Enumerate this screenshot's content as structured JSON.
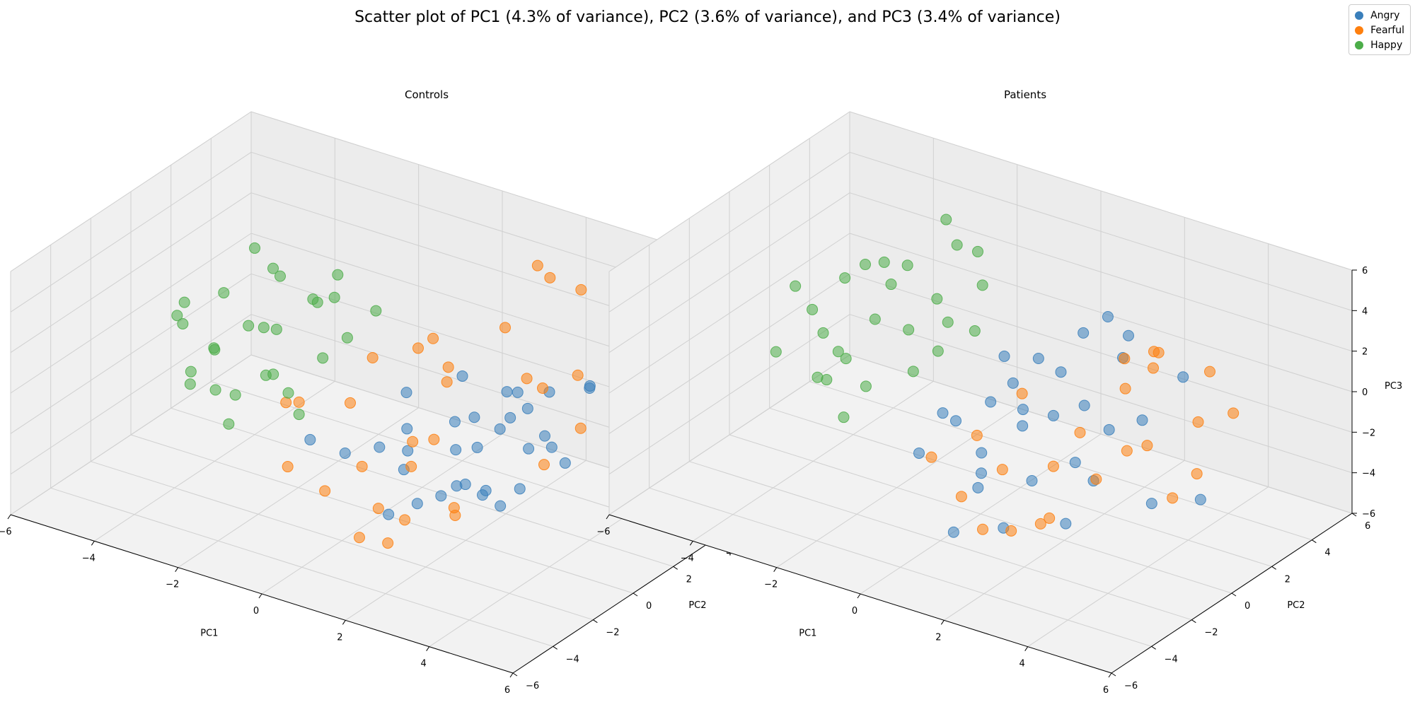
{
  "figure": {
    "title": "Scatter plot of PC1 (4.3% of variance), PC2 (3.6% of variance), and PC3 (3.4% of variance)"
  },
  "legend": {
    "placement": "top-right",
    "entries": [
      {
        "label": "Angry",
        "color": "#3a7fbb"
      },
      {
        "label": "Fearful",
        "color": "#fe7f0e"
      },
      {
        "label": "Happy",
        "color": "#4cad49"
      }
    ]
  },
  "chart_data": [
    {
      "type": "scatter",
      "title": "Controls",
      "xlabel": "PC1",
      "ylabel": "PC2",
      "zlabel": "PC3",
      "xlim": [
        -6,
        6
      ],
      "ylim": [
        -6,
        6
      ],
      "zlim": [
        -6,
        6
      ],
      "xticks": [
        "−6",
        "−4",
        "−2",
        "0",
        "2",
        "4",
        "6"
      ],
      "yticks": [
        "−6",
        "−4",
        "−2",
        "0",
        "2",
        "4",
        "6"
      ],
      "zticks": [
        "−6",
        "−4",
        "−2",
        "0",
        "2",
        "4",
        "6"
      ],
      "grid": true,
      "series": [
        {
          "name": "Angry",
          "color": "#3a7fbb",
          "points": [
            [
              2.0,
              -0.5,
              -1.2
            ],
            [
              3.0,
              1.0,
              0.5
            ],
            [
              1.5,
              0.5,
              -0.8
            ],
            [
              2.5,
              -1.5,
              -2.0
            ],
            [
              4.0,
              2.0,
              1.5
            ],
            [
              3.5,
              0.0,
              -0.5
            ],
            [
              1.0,
              -1.0,
              -2.5
            ],
            [
              2.2,
              1.8,
              -1.0
            ],
            [
              3.2,
              -0.8,
              0.8
            ],
            [
              0.5,
              0.2,
              -1.6
            ],
            [
              2.8,
              2.5,
              0.2
            ],
            [
              1.8,
              -2.0,
              -3.0
            ],
            [
              3.8,
              1.2,
              -1.8
            ],
            [
              2.4,
              0.0,
              -3.5
            ],
            [
              4.5,
              3.0,
              0.0
            ],
            [
              1.2,
              1.5,
              0.6
            ],
            [
              0.8,
              -1.8,
              -1.0
            ],
            [
              3.4,
              -1.2,
              -2.6
            ],
            [
              2.6,
              0.8,
              1.2
            ],
            [
              1.6,
              -0.4,
              -3.8
            ],
            [
              3.0,
              2.2,
              -2.2
            ],
            [
              -0.5,
              -0.8,
              -2.8
            ],
            [
              5.0,
              2.5,
              1.0
            ],
            [
              2.0,
              1.0,
              -4.2
            ],
            [
              1.4,
              -2.6,
              -3.4
            ],
            [
              3.6,
              0.6,
              -0.2
            ],
            [
              0.2,
              0.8,
              -0.4
            ],
            [
              2.9,
              -1.9,
              -1.4
            ],
            [
              4.2,
              1.6,
              2.0
            ],
            [
              -1.0,
              -1.5,
              -2.0
            ],
            [
              1.9,
              2.8,
              -0.6
            ],
            [
              2.3,
              -0.2,
              0.4
            ],
            [
              3.1,
              0.4,
              -3.0
            ],
            [
              0.9,
              -0.6,
              -1.9
            ],
            [
              1.7,
              1.2,
              -2.4
            ]
          ]
        },
        {
          "name": "Fearful",
          "color": "#fe7f0e",
          "points": [
            [
              1.0,
              0.5,
              -2.0
            ],
            [
              0.0,
              -1.0,
              -3.0
            ],
            [
              2.5,
              2.0,
              1.0
            ],
            [
              -1.0,
              0.5,
              -1.5
            ],
            [
              1.5,
              -2.0,
              -4.0
            ],
            [
              3.0,
              3.5,
              0.5
            ],
            [
              0.5,
              1.5,
              2.0
            ],
            [
              1.8,
              4.0,
              4.8
            ],
            [
              2.0,
              4.2,
              4.2
            ],
            [
              2.6,
              4.5,
              3.8
            ],
            [
              -0.6,
              -1.6,
              -4.2
            ],
            [
              0.8,
              -2.8,
              -4.8
            ],
            [
              2.2,
              -1.0,
              -3.6
            ],
            [
              3.5,
              2.6,
              -1.2
            ],
            [
              1.2,
              0.8,
              1.5
            ],
            [
              -1.6,
              -0.8,
              -1.0
            ],
            [
              0.4,
              2.4,
              -0.8
            ],
            [
              2.8,
              -2.2,
              -2.8
            ],
            [
              -0.8,
              1.2,
              0.4
            ],
            [
              1.6,
              2.8,
              2.4
            ],
            [
              0.2,
              -0.6,
              -5.2
            ],
            [
              3.2,
              1.4,
              -2.4
            ],
            [
              -2.2,
              -0.2,
              -1.8
            ],
            [
              1.4,
              -1.4,
              -0.6
            ],
            [
              2.4,
              3.0,
              -0.2
            ],
            [
              0.6,
              0.2,
              -3.4
            ],
            [
              -1.2,
              -2.2,
              -3.0
            ],
            [
              4.0,
              3.6,
              0.8
            ],
            [
              0.0,
              1.8,
              1.0
            ],
            [
              1.0,
              -1.8,
              -5.6
            ]
          ]
        },
        {
          "name": "Happy",
          "color": "#4cad49",
          "points": [
            [
              -3.0,
              1.0,
              0.5
            ],
            [
              -4.0,
              0.0,
              -0.5
            ],
            [
              -2.5,
              2.0,
              1.5
            ],
            [
              -3.5,
              -1.0,
              -1.5
            ],
            [
              -4.5,
              1.5,
              1.0
            ],
            [
              -2.0,
              -0.5,
              -1.0
            ],
            [
              -3.8,
              2.5,
              2.0
            ],
            [
              -5.0,
              0.5,
              -0.2
            ],
            [
              -2.8,
              -1.8,
              -2.2
            ],
            [
              -4.2,
              -0.8,
              -1.8
            ],
            [
              -3.2,
              1.6,
              2.6
            ],
            [
              -1.8,
              0.8,
              0.0
            ],
            [
              -2.4,
              2.8,
              2.4
            ],
            [
              -4.8,
              -0.2,
              0.8
            ],
            [
              -3.6,
              0.2,
              -2.6
            ],
            [
              -1.5,
              1.4,
              0.8
            ],
            [
              -2.2,
              -1.2,
              0.2
            ],
            [
              -4.0,
              2.0,
              3.2
            ],
            [
              -3.0,
              -0.4,
              1.6
            ],
            [
              -1.2,
              2.2,
              1.8
            ],
            [
              -4.4,
              0.8,
              -1.2
            ],
            [
              -2.6,
              0.0,
              -0.8
            ],
            [
              -3.4,
              1.2,
              0.2
            ],
            [
              -2.0,
              1.8,
              2.2
            ],
            [
              -5.2,
              1.0,
              0.4
            ],
            [
              -1.6,
              -0.8,
              -1.6
            ],
            [
              -3.8,
              -1.6,
              -0.4
            ],
            [
              -2.8,
              2.4,
              1.2
            ]
          ]
        }
      ]
    },
    {
      "type": "scatter",
      "title": "Patients",
      "xlabel": "PC1",
      "ylabel": "PC2",
      "zlabel": "PC3",
      "xlim": [
        -6,
        6
      ],
      "ylim": [
        -6,
        6
      ],
      "zlim": [
        -6,
        6
      ],
      "xticks": [
        "−6",
        "−4",
        "−2",
        "0",
        "2",
        "4",
        "6"
      ],
      "yticks": [
        "−6",
        "−4",
        "−2",
        "0",
        "2",
        "4",
        "6"
      ],
      "zticks": [
        "−6",
        "−4",
        "−2",
        "0",
        "2",
        "4",
        "6"
      ],
      "grid": true,
      "series": [
        {
          "name": "Angry",
          "color": "#3a7fbb",
          "points": [
            [
              1.0,
              0.0,
              -1.0
            ],
            [
              2.0,
              1.0,
              0.0
            ],
            [
              0.5,
              -1.0,
              -2.0
            ],
            [
              1.5,
              0.5,
              -0.5
            ],
            [
              2.5,
              -0.5,
              -1.5
            ],
            [
              0.0,
              0.5,
              -0.8
            ],
            [
              1.2,
              1.5,
              0.8
            ],
            [
              2.2,
              2.5,
              1.5
            ],
            [
              0.8,
              -1.8,
              -3.0
            ],
            [
              1.8,
              -1.2,
              -2.4
            ],
            [
              3.0,
              1.8,
              -0.6
            ],
            [
              -0.4,
              -0.4,
              -1.4
            ],
            [
              1.4,
              2.2,
              2.4
            ],
            [
              2.6,
              0.2,
              -2.8
            ],
            [
              0.2,
              1.2,
              -0.2
            ],
            [
              1.6,
              -2.2,
              -4.2
            ],
            [
              3.4,
              3.0,
              1.0
            ],
            [
              -0.8,
              -1.4,
              -2.6
            ],
            [
              2.8,
              -1.6,
              -3.6
            ],
            [
              1.0,
              0.8,
              1.8
            ],
            [
              0.6,
              -2.6,
              -4.8
            ],
            [
              2.0,
              3.2,
              2.0
            ],
            [
              -1.0,
              0.2,
              -1.8
            ],
            [
              3.8,
              0.6,
              -3.4
            ],
            [
              1.3,
              -0.6,
              0.4
            ],
            [
              2.4,
              1.4,
              -1.2
            ],
            [
              0.4,
              -0.8,
              -3.2
            ],
            [
              1.7,
              2.8,
              3.0
            ],
            [
              -0.2,
              1.6,
              0.6
            ],
            [
              4.2,
              2.2,
              -4.0
            ]
          ]
        },
        {
          "name": "Fearful",
          "color": "#fe7f0e",
          "points": [
            [
              2.5,
              2.0,
              0.5
            ],
            [
              3.5,
              1.0,
              -1.0
            ],
            [
              1.0,
              -1.0,
              -2.5
            ],
            [
              2.0,
              3.0,
              1.0
            ],
            [
              4.0,
              2.5,
              -0.5
            ],
            [
              0.5,
              -2.0,
              -3.5
            ],
            [
              3.0,
              -0.5,
              -2.0
            ],
            [
              1.5,
              0.5,
              -3.0
            ],
            [
              3.8,
              3.5,
              1.2
            ],
            [
              2.2,
              -1.6,
              -4.0
            ],
            [
              4.4,
              1.6,
              -2.2
            ],
            [
              0.2,
              -0.6,
              -1.6
            ],
            [
              2.8,
              2.8,
              2.0
            ],
            [
              1.2,
              -2.4,
              -4.4
            ],
            [
              3.4,
              0.2,
              -0.8
            ],
            [
              -0.6,
              -1.2,
              -2.8
            ],
            [
              4.6,
              3.0,
              0.0
            ],
            [
              1.8,
              1.2,
              -1.6
            ],
            [
              2.6,
              -2.0,
              -3.2
            ],
            [
              3.2,
              2.2,
              2.6
            ],
            [
              0.8,
              0.4,
              0.2
            ],
            [
              4.2,
              0.8,
              -3.0
            ],
            [
              1.4,
              -1.4,
              -5.0
            ],
            [
              2.4,
              3.6,
              0.4
            ]
          ]
        },
        {
          "name": "Happy",
          "color": "#4cad49",
          "points": [
            [
              -3.0,
              1.0,
              1.0
            ],
            [
              -2.0,
              2.0,
              2.0
            ],
            [
              -4.0,
              0.5,
              0.0
            ],
            [
              -2.5,
              -0.5,
              -1.0
            ],
            [
              -3.5,
              2.5,
              2.5
            ],
            [
              -1.5,
              1.5,
              1.5
            ],
            [
              -4.5,
              1.0,
              0.5
            ],
            [
              -2.0,
              3.0,
              4.0
            ],
            [
              -2.5,
              3.5,
              4.6
            ],
            [
              -1.6,
              3.2,
              3.8
            ],
            [
              -3.2,
              -1.0,
              -0.8
            ],
            [
              -4.2,
              2.0,
              1.6
            ],
            [
              -1.8,
              0.4,
              -0.4
            ],
            [
              -3.8,
              -0.2,
              -1.6
            ],
            [
              -2.8,
              2.2,
              3.0
            ],
            [
              -1.2,
              2.6,
              2.8
            ],
            [
              -5.0,
              1.2,
              1.2
            ],
            [
              -3.4,
              0.0,
              -0.2
            ],
            [
              -2.2,
              1.0,
              1.0
            ],
            [
              -4.6,
              -0.6,
              -0.6
            ],
            [
              -1.4,
              0.8,
              0.6
            ],
            [
              -3.0,
              1.8,
              2.2
            ],
            [
              -2.6,
              -1.4,
              -2.0
            ],
            [
              -4.0,
              2.6,
              2.0
            ],
            [
              -1.0,
              1.8,
              1.2
            ],
            [
              -3.6,
              0.8,
              -1.2
            ]
          ]
        }
      ]
    }
  ]
}
